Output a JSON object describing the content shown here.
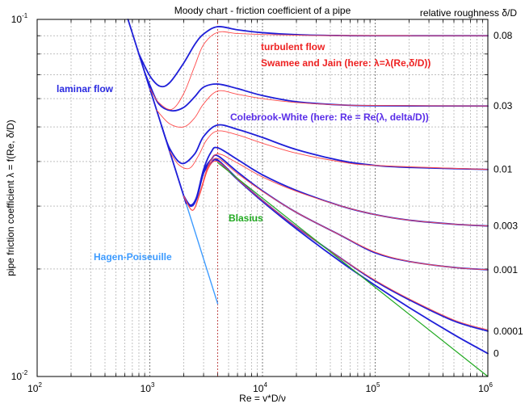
{
  "chart_data": {
    "type": "line",
    "title": "Moody chart - friction coefficient of a pipe",
    "xlabel": "Re = v*D/ν",
    "ylabel": "pipe friction coefficient λ = f(Re, δ/D)",
    "legend_title": "relative roughness δ/D",
    "x_scale": "log",
    "y_scale": "log",
    "xlim": [
      100,
      1000000
    ],
    "ylim": [
      0.01,
      0.1
    ],
    "grid": true,
    "x_ticks": [
      {
        "base": "10",
        "exp": "2",
        "value": 100
      },
      {
        "base": "10",
        "exp": "3",
        "value": 1000
      },
      {
        "base": "10",
        "exp": "4",
        "value": 10000
      },
      {
        "base": "10",
        "exp": "5",
        "value": 100000
      },
      {
        "base": "10",
        "exp": "6",
        "value": 1000000
      }
    ],
    "y_ticks": [
      {
        "base": "10",
        "exp": "-1",
        "value": 0.1
      },
      {
        "base": "10",
        "exp": "-2",
        "value": 0.01
      }
    ],
    "transition_marker_re": 4000,
    "colors": {
      "colebrook": "#1f1fd8",
      "swamee": "#ff4a4a",
      "blasius": "#22aa22",
      "laminar": "#1f1fd8",
      "hagen": "#3d9bff",
      "grid": "#9a9a9a",
      "marker": "#c03030"
    },
    "annotations": [
      {
        "text": "laminar flow",
        "color": "#2a2ae0"
      },
      {
        "text": "turbulent flow",
        "color": "#ee2222"
      },
      {
        "text": "Swamee and Jain (here: λ=λ(Re,δ/D))",
        "color": "#ee2222"
      },
      {
        "text": "Colebrook-White (here: Re = Re(λ, delta/D))",
        "color": "#5a2ee8"
      },
      {
        "text": "Blasius",
        "color": "#22aa22"
      },
      {
        "text": "Hagen-Poiseuille",
        "color": "#3d9bff"
      }
    ],
    "roughness_labels": [
      {
        "text": "0.08",
        "lambda": 0.09
      },
      {
        "text": "0.03",
        "lambda": 0.0572
      },
      {
        "text": "0.01",
        "lambda": 0.038
      },
      {
        "text": "0.003",
        "lambda": 0.0264
      },
      {
        "text": "0.001",
        "lambda": 0.0199
      },
      {
        "text": "0.0001",
        "lambda": 0.0134
      },
      {
        "text": "0",
        "lambda": 0.0116
      }
    ],
    "series": [
      {
        "group": "laminar",
        "roughness": "",
        "points": [
          [
            640,
            0.1
          ],
          [
            1000,
            0.064
          ],
          [
            1500,
            0.0427
          ],
          [
            2100,
            0.0305
          ]
        ]
      },
      {
        "group": "hagen",
        "roughness": "",
        "points": [
          [
            2100,
            0.0305
          ],
          [
            4000,
            0.016
          ]
        ]
      },
      {
        "group": "colebrook",
        "roughness": "0.08",
        "points": [
          [
            800,
            0.08
          ],
          [
            1000,
            0.0695
          ],
          [
            1230,
            0.065
          ],
          [
            1500,
            0.0665
          ],
          [
            2000,
            0.0755
          ],
          [
            2500,
            0.085
          ],
          [
            3000,
            0.091
          ],
          [
            4000,
            0.0954
          ],
          [
            6000,
            0.0935
          ],
          [
            10000,
            0.0918
          ],
          [
            20000,
            0.0906
          ],
          [
            50000,
            0.0901
          ],
          [
            100000,
            0.09
          ],
          [
            1000000,
            0.09
          ]
        ]
      },
      {
        "group": "colebrook",
        "roughness": "0.03",
        "points": [
          [
            900,
            0.0711
          ],
          [
            1000,
            0.0655
          ],
          [
            1200,
            0.058
          ],
          [
            1550,
            0.0555
          ],
          [
            2000,
            0.0567
          ],
          [
            2500,
            0.0607
          ],
          [
            3000,
            0.0646
          ],
          [
            4000,
            0.0659
          ],
          [
            6000,
            0.064
          ],
          [
            10000,
            0.0612
          ],
          [
            20000,
            0.0588
          ],
          [
            50000,
            0.0576
          ],
          [
            100000,
            0.0573
          ],
          [
            1000000,
            0.0572
          ]
        ]
      },
      {
        "group": "colebrook",
        "roughness": "0.01",
        "points": [
          [
            1270,
            0.0504
          ],
          [
            1500,
            0.0435
          ],
          [
            1920,
            0.0395
          ],
          [
            2500,
            0.042
          ],
          [
            3000,
            0.047
          ],
          [
            4000,
            0.0506
          ],
          [
            6000,
            0.0492
          ],
          [
            10000,
            0.0467
          ],
          [
            20000,
            0.0432
          ],
          [
            50000,
            0.0402
          ],
          [
            100000,
            0.039
          ],
          [
            200000,
            0.0385
          ],
          [
            1000000,
            0.038
          ]
        ]
      },
      {
        "group": "colebrook",
        "roughness": "0.003",
        "points": [
          [
            2000,
            0.032
          ],
          [
            2300,
            0.0302
          ],
          [
            2600,
            0.0318
          ],
          [
            3000,
            0.038
          ],
          [
            3500,
            0.0425
          ],
          [
            4000,
            0.0437
          ],
          [
            6000,
            0.0405
          ],
          [
            10000,
            0.0367
          ],
          [
            20000,
            0.0332
          ],
          [
            50000,
            0.03
          ],
          [
            100000,
            0.0284
          ],
          [
            200000,
            0.0274
          ],
          [
            500000,
            0.0267
          ],
          [
            1000000,
            0.0264
          ]
        ]
      },
      {
        "group": "colebrook",
        "roughness": "0.001",
        "points": [
          [
            2000,
            0.032
          ],
          [
            2300,
            0.03
          ],
          [
            2600,
            0.0316
          ],
          [
            3000,
            0.0375
          ],
          [
            3500,
            0.0405
          ],
          [
            4000,
            0.0415
          ],
          [
            6000,
            0.0374
          ],
          [
            10000,
            0.0331
          ],
          [
            20000,
            0.0288
          ],
          [
            50000,
            0.0248
          ],
          [
            100000,
            0.0222
          ],
          [
            200000,
            0.021
          ],
          [
            500000,
            0.0202
          ],
          [
            1000000,
            0.0199
          ]
        ]
      },
      {
        "group": "colebrook",
        "roughness": "0.0001",
        "points": [
          [
            2000,
            0.032
          ],
          [
            2300,
            0.03
          ],
          [
            2600,
            0.0315
          ],
          [
            3000,
            0.0372
          ],
          [
            3500,
            0.0397
          ],
          [
            4000,
            0.0404
          ],
          [
            6000,
            0.0358
          ],
          [
            10000,
            0.0311
          ],
          [
            20000,
            0.0262
          ],
          [
            50000,
            0.0214
          ],
          [
            100000,
            0.0185
          ],
          [
            200000,
            0.0164
          ],
          [
            500000,
            0.0143
          ],
          [
            1000000,
            0.0134
          ]
        ]
      },
      {
        "group": "colebrook",
        "roughness": "0",
        "points": [
          [
            2000,
            0.032
          ],
          [
            2300,
            0.03
          ],
          [
            2600,
            0.0315
          ],
          [
            3000,
            0.0371
          ],
          [
            3500,
            0.0396
          ],
          [
            4000,
            0.0402
          ],
          [
            6000,
            0.0356
          ],
          [
            10000,
            0.0309
          ],
          [
            20000,
            0.0259
          ],
          [
            50000,
            0.0209
          ],
          [
            100000,
            0.018
          ],
          [
            200000,
            0.0156
          ],
          [
            500000,
            0.0131
          ],
          [
            1000000,
            0.0116
          ]
        ]
      },
      {
        "group": "swamee",
        "roughness": "0.08",
        "points": [
          [
            1000,
            0.064
          ],
          [
            1200,
            0.0585
          ],
          [
            1570,
            0.056
          ],
          [
            2000,
            0.062
          ],
          [
            2500,
            0.074
          ],
          [
            3000,
            0.085
          ],
          [
            4000,
            0.092
          ],
          [
            6000,
            0.0913
          ],
          [
            10000,
            0.0907
          ],
          [
            20000,
            0.0903
          ],
          [
            50000,
            0.0901
          ],
          [
            1000000,
            0.09
          ]
        ]
      },
      {
        "group": "swamee",
        "roughness": "0.03",
        "points": [
          [
            1150,
            0.0557
          ],
          [
            1500,
            0.051
          ],
          [
            2000,
            0.05
          ],
          [
            2500,
            0.053
          ],
          [
            3000,
            0.058
          ],
          [
            4000,
            0.063
          ],
          [
            6000,
            0.0617
          ],
          [
            10000,
            0.06
          ],
          [
            20000,
            0.0585
          ],
          [
            50000,
            0.0576
          ],
          [
            100000,
            0.0574
          ],
          [
            1000000,
            0.0572
          ]
        ]
      },
      {
        "group": "swamee",
        "roughness": "0.01",
        "points": [
          [
            1500,
            0.0427
          ],
          [
            1800,
            0.0392
          ],
          [
            2250,
            0.0383
          ],
          [
            2700,
            0.0415
          ],
          [
            3200,
            0.046
          ],
          [
            4000,
            0.0487
          ],
          [
            6000,
            0.0475
          ],
          [
            10000,
            0.045
          ],
          [
            20000,
            0.0422
          ],
          [
            50000,
            0.0399
          ],
          [
            100000,
            0.039
          ],
          [
            1000000,
            0.038
          ]
        ]
      },
      {
        "group": "swamee",
        "roughness": "0.003",
        "points": [
          [
            2000,
            0.032
          ],
          [
            2400,
            0.0292
          ],
          [
            2800,
            0.033
          ],
          [
            3300,
            0.039
          ],
          [
            4000,
            0.042
          ],
          [
            6000,
            0.0396
          ],
          [
            10000,
            0.0362
          ],
          [
            20000,
            0.033
          ],
          [
            50000,
            0.03
          ],
          [
            100000,
            0.0284
          ],
          [
            200000,
            0.0274
          ],
          [
            500000,
            0.0267
          ],
          [
            1000000,
            0.0264
          ]
        ]
      },
      {
        "group": "swamee",
        "roughness": "0.001",
        "points": [
          [
            2000,
            0.032
          ],
          [
            2400,
            0.0292
          ],
          [
            2800,
            0.0328
          ],
          [
            3300,
            0.0385
          ],
          [
            4000,
            0.0408
          ],
          [
            6000,
            0.037
          ],
          [
            10000,
            0.033
          ],
          [
            20000,
            0.0288
          ],
          [
            50000,
            0.0248
          ],
          [
            100000,
            0.0223
          ],
          [
            200000,
            0.021
          ],
          [
            500000,
            0.0202
          ],
          [
            1000000,
            0.0199
          ]
        ]
      },
      {
        "group": "swamee",
        "roughness": "0.0001",
        "points": [
          [
            2000,
            0.032
          ],
          [
            2400,
            0.0292
          ],
          [
            2800,
            0.0326
          ],
          [
            3300,
            0.0382
          ],
          [
            4000,
            0.04
          ],
          [
            6000,
            0.0357
          ],
          [
            10000,
            0.0311
          ],
          [
            20000,
            0.0262
          ],
          [
            50000,
            0.0214
          ],
          [
            100000,
            0.0186
          ],
          [
            200000,
            0.0165
          ],
          [
            500000,
            0.0144
          ],
          [
            1000000,
            0.0135
          ]
        ]
      },
      {
        "group": "blasius",
        "roughness": "",
        "points": [
          [
            4000,
            0.0397
          ],
          [
            1000000,
            0.01
          ]
        ]
      }
    ]
  }
}
